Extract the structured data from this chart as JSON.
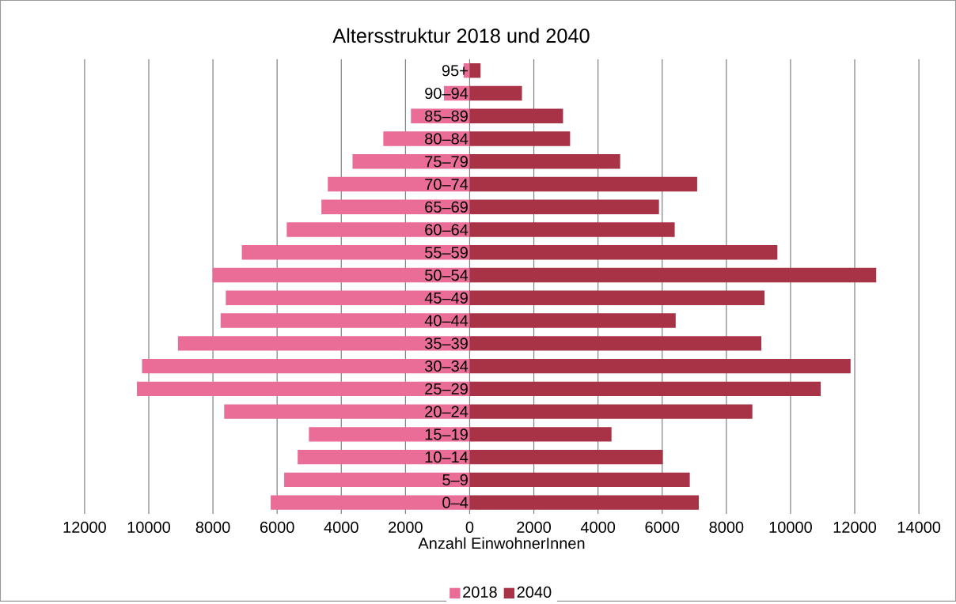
{
  "chart_data": {
    "type": "bar",
    "orientation": "horizontal",
    "title": "Altersstruktur 2018 und 2040",
    "xlabel": "Anzahl EinwohnerInnen",
    "categories": [
      "95+",
      "90–94",
      "85–89",
      "80–84",
      "75–79",
      "70–74",
      "65–69",
      "60–64",
      "55–59",
      "50–54",
      "45–49",
      "40–44",
      "35–39",
      "30–34",
      "25–29",
      "20–24",
      "15–19",
      "10–14",
      "5–9",
      "0–4"
    ],
    "series": [
      {
        "name": "2018",
        "color": "#e96d97",
        "values": [
          -190,
          -800,
          -1830,
          -2690,
          -3650,
          -4420,
          -4620,
          -5700,
          -7100,
          -8010,
          -7600,
          -7760,
          -9090,
          -10210,
          -10370,
          -7650,
          -5010,
          -5360,
          -5780,
          -6200
        ]
      },
      {
        "name": "2040",
        "color": "#a83246",
        "values": [
          340,
          1630,
          2910,
          3130,
          4690,
          7090,
          5900,
          6390,
          9590,
          12670,
          9190,
          6420,
          9090,
          11870,
          10940,
          8810,
          4420,
          6020,
          6860,
          7140
        ]
      }
    ],
    "xlim": [
      -12000,
      14000
    ],
    "xticks": [
      {
        "value": -12000,
        "label": "12000"
      },
      {
        "value": -10000,
        "label": "10000"
      },
      {
        "value": -8000,
        "label": "8000"
      },
      {
        "value": -6000,
        "label": "6000"
      },
      {
        "value": -4000,
        "label": "4000"
      },
      {
        "value": -2000,
        "label": "2000"
      },
      0,
      2000,
      4000,
      6000,
      8000,
      10000,
      12000,
      14000
    ],
    "grid": "x",
    "legend": "bottom",
    "stacked": true
  }
}
